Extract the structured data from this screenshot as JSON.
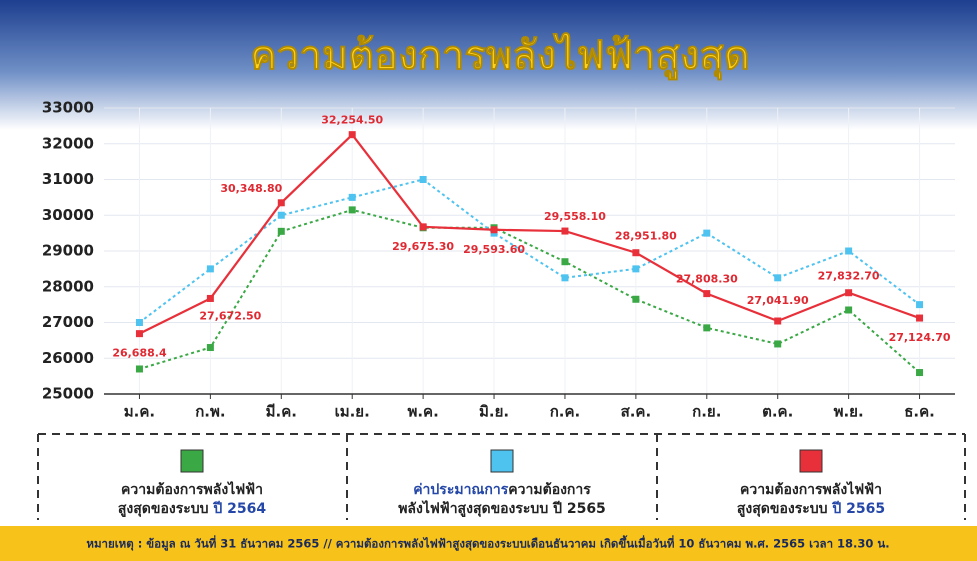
{
  "chart_data": {
    "type": "line",
    "title": "ความต้องการพลังไฟฟ้าสูงสุด",
    "categories": [
      "ม.ค.",
      "ก.พ.",
      "มี.ค.",
      "เม.ย.",
      "พ.ค.",
      "มิ.ย.",
      "ก.ค.",
      "ส.ค.",
      "ก.ย.",
      "ต.ค.",
      "พ.ย.",
      "ธ.ค."
    ],
    "ylim": [
      25000,
      33000
    ],
    "yticks": [
      25000,
      26000,
      27000,
      28000,
      29000,
      30000,
      31000,
      32000,
      33000
    ],
    "grid": true,
    "series": [
      {
        "name_lines": [
          [
            {
              "text": "ความต้องการพลังไฟฟ้า"
            }
          ],
          [
            {
              "text": "สูงสุดของระบบ "
            },
            {
              "text": "ปี 2564",
              "emphasis": true
            }
          ]
        ],
        "color": "#3aa845",
        "dash": true,
        "values": [
          25700,
          26300,
          29550,
          30150,
          29650,
          29650,
          28700,
          27650,
          26850,
          26400,
          27350,
          25600
        ]
      },
      {
        "name_lines": [
          [
            {
              "text": "ค่าประมาณการ",
              "emphasis": true
            },
            {
              "text": "ความต้องการ"
            }
          ],
          [
            {
              "text": "พลังไฟฟ้าสูงสุดของระบบ ปี 2565"
            }
          ]
        ],
        "color": "#4fc3f0",
        "dash": true,
        "values": [
          27000,
          28500,
          30000,
          30500,
          31000,
          29500,
          28250,
          28500,
          29500,
          28250,
          29000,
          27500
        ]
      },
      {
        "name_lines": [
          [
            {
              "text": "ความต้องการพลังไฟฟ้า"
            }
          ],
          [
            {
              "text": "สูงสุดของระบบ "
            },
            {
              "text": "ปี 2565",
              "emphasis": true
            }
          ]
        ],
        "color": "#e8303a",
        "dash": false,
        "values": [
          26688.4,
          27672.5,
          30348.8,
          32254.5,
          29675.3,
          29593.6,
          29558.1,
          28951.8,
          27808.3,
          27041.9,
          27832.7,
          27124.7
        ],
        "value_labels": [
          "26,688.4",
          "27,672.50",
          "30,348.80",
          "32,254.50",
          "29,675.30",
          "29,593.60",
          "29,558.10",
          "28,951.80",
          "27,808.30",
          "27,041.90",
          "27,832.70",
          "27,124.70"
        ]
      }
    ],
    "note": "หมายเหตุ : ข้อมูล ณ วันที่ 31 ธันวาคม 2565 // ความต้องการพลังไฟฟ้าสูงสุดของระบบเดือนธันวาคม เกิดขึ้นเมื่อวันที่ 10 ธันวาคม พ.ศ. 2565 เวลา 18.30 น."
  }
}
